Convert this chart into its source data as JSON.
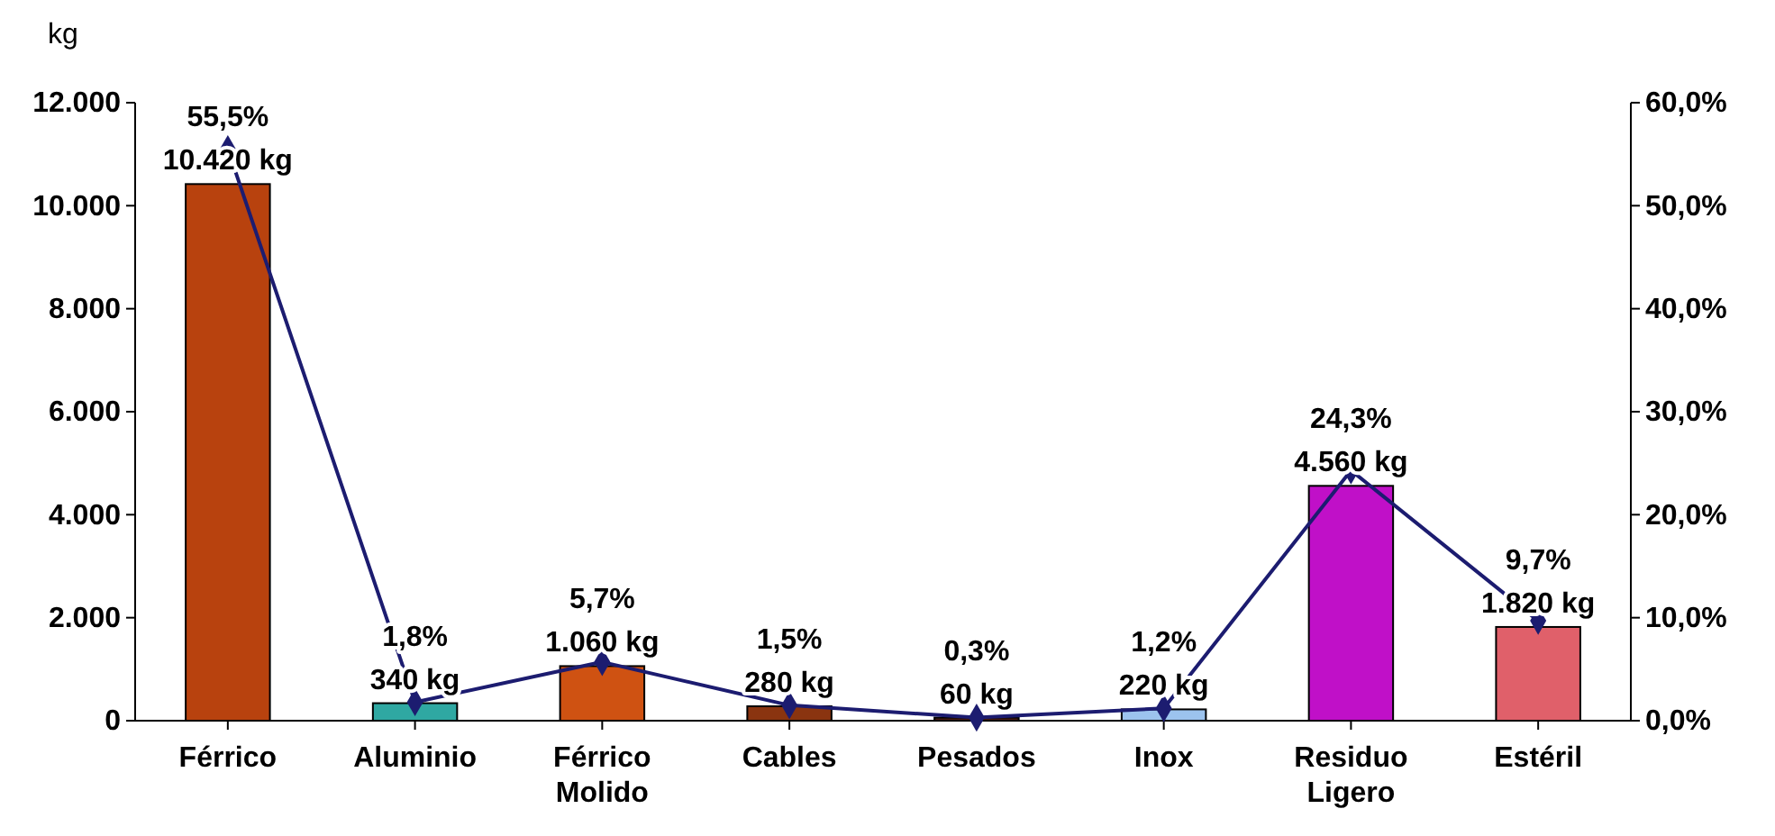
{
  "chart_data": {
    "type": "bar",
    "ylabel": "kg",
    "categories": [
      "Férrico",
      "Aluminio",
      "Férrico Molido",
      "Cables",
      "Pesados",
      "Inox",
      "Residuo Ligero",
      "Estéril"
    ],
    "series": [
      {
        "values": [
          10420,
          340,
          1060,
          280,
          60,
          220,
          4560,
          1820
        ],
        "colors": [
          "#b8420e",
          "#2fa8a2",
          "#cf5212",
          "#8a3410",
          "#4a1c12",
          "#9cc3ee",
          "#c010c8",
          "#e0606a"
        ],
        "value_labels": [
          "10.420 kg",
          "340 kg",
          "1.060 kg",
          "280 kg",
          "60 kg",
          "220 kg",
          "4.560 kg",
          "1.820 kg"
        ]
      },
      {
        "type": "line",
        "axis": "y2",
        "color": "#1c1c70",
        "marker": "diamond",
        "values": [
          55.5,
          1.8,
          5.7,
          1.5,
          0.3,
          1.2,
          24.3,
          9.7
        ],
        "value_labels": [
          "55,5%",
          "1,8%",
          "5,7%",
          "1,5%",
          "0,3%",
          "1,2%",
          "24,3%",
          "9,7%"
        ]
      }
    ],
    "ylim": [
      0,
      12000
    ],
    "yticks": [
      {
        "value": 0,
        "label": "0"
      },
      {
        "value": 2000,
        "label": "2.000"
      },
      {
        "value": 4000,
        "label": "4.000"
      },
      {
        "value": 6000,
        "label": "6.000"
      },
      {
        "value": 8000,
        "label": "8.000"
      },
      {
        "value": 10000,
        "label": "10.000"
      },
      {
        "value": 12000,
        "label": "12.000"
      }
    ],
    "y2lim": [
      0,
      60
    ],
    "y2ticks": [
      {
        "value": 0,
        "label": "0,0%"
      },
      {
        "value": 10,
        "label": "10,0%"
      },
      {
        "value": 20,
        "label": "20,0%"
      },
      {
        "value": 30,
        "label": "30,0%"
      },
      {
        "value": 40,
        "label": "40,0%"
      },
      {
        "value": 50,
        "label": "50,0%"
      },
      {
        "value": 60,
        "label": "60,0%"
      }
    ],
    "grid": false
  }
}
